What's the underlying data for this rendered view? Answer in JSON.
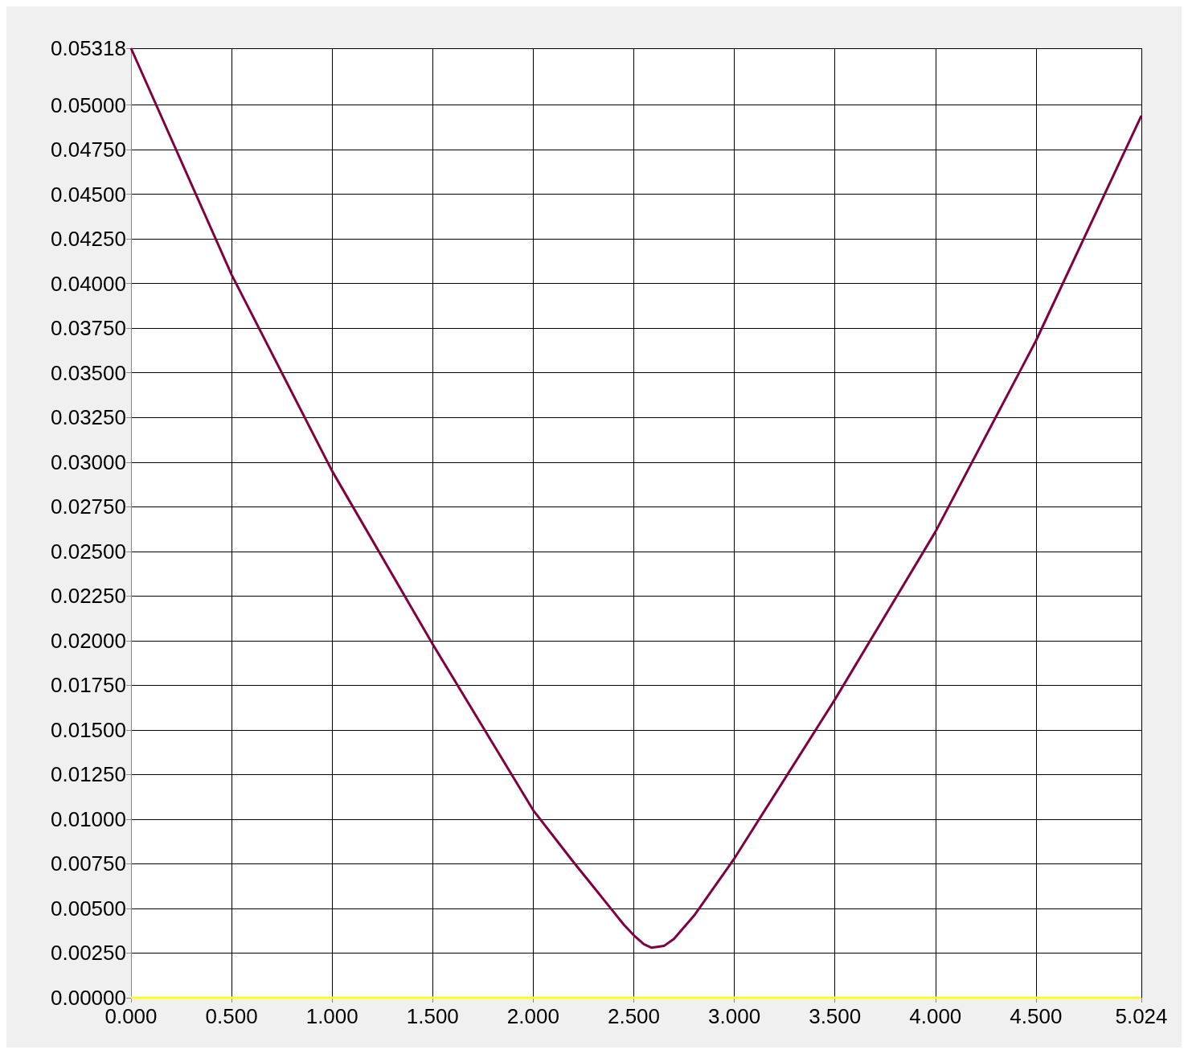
{
  "chart_data": {
    "type": "line",
    "x": [
      0,
      0.5,
      1.0,
      1.5,
      2.0,
      2.2,
      2.3,
      2.4,
      2.45,
      2.5,
      2.55,
      2.589,
      2.65,
      2.7,
      2.8,
      2.9,
      3.0,
      3.5,
      4.0,
      4.5,
      5.024
    ],
    "series": [
      {
        "color": "#800040",
        "values": [
          0.05318,
          0.0405,
          0.0295,
          0.0198,
          0.0105,
          0.0076,
          0.0062,
          0.0048,
          0.0041,
          0.0035,
          0.003,
          0.0028,
          0.0029,
          0.0033,
          0.0046,
          0.0062,
          0.0078,
          0.0167,
          0.0261,
          0.0368,
          0.0494
        ]
      },
      {
        "color": "#ffff00",
        "x": [
          0,
          5.024
        ],
        "values": [
          0,
          0
        ]
      }
    ],
    "xlim": [
      0,
      5.024
    ],
    "xticks": [
      {
        "value": 0,
        "label": "0.000"
      },
      {
        "value": 0.5,
        "label": "0.500"
      },
      {
        "value": 1,
        "label": "1.000"
      },
      {
        "value": 1.5,
        "label": "1.500"
      },
      {
        "value": 2,
        "label": "2.000"
      },
      {
        "value": 2.5,
        "label": "2.500"
      },
      {
        "value": 3,
        "label": "3.000"
      },
      {
        "value": 3.5,
        "label": "3.500"
      },
      {
        "value": 4,
        "label": "4.000"
      },
      {
        "value": 4.5,
        "label": "4.500"
      },
      5.024
    ],
    "ylim": [
      0,
      0.05318
    ],
    "yticks": [
      {
        "value": 0,
        "label": "0.00000"
      },
      {
        "value": 0.0025,
        "label": "0.00250"
      },
      {
        "value": 0.005,
        "label": "0.00500"
      },
      {
        "value": 0.0075,
        "label": "0.00750"
      },
      {
        "value": 0.01,
        "label": "0.01000"
      },
      {
        "value": 0.0125,
        "label": "0.01250"
      },
      {
        "value": 0.015,
        "label": "0.01500"
      },
      {
        "value": 0.0175,
        "label": "0.01750"
      },
      {
        "value": 0.02,
        "label": "0.02000"
      },
      {
        "value": 0.0225,
        "label": "0.02250"
      },
      {
        "value": 0.025,
        "label": "0.02500"
      },
      {
        "value": 0.0275,
        "label": "0.02750"
      },
      {
        "value": 0.03,
        "label": "0.03000"
      },
      {
        "value": 0.0325,
        "label": "0.03250"
      },
      {
        "value": 0.035,
        "label": "0.03500"
      },
      {
        "value": 0.0375,
        "label": "0.03750"
      },
      {
        "value": 0.04,
        "label": "0.04000"
      },
      {
        "value": 0.0425,
        "label": "0.04250"
      },
      {
        "value": 0.045,
        "label": "0.04500"
      },
      {
        "value": 0.0475,
        "label": "0.04750"
      },
      {
        "value": 0.05,
        "label": "0.05000"
      },
      0.05318
    ],
    "grid": true,
    "marker": "none"
  }
}
